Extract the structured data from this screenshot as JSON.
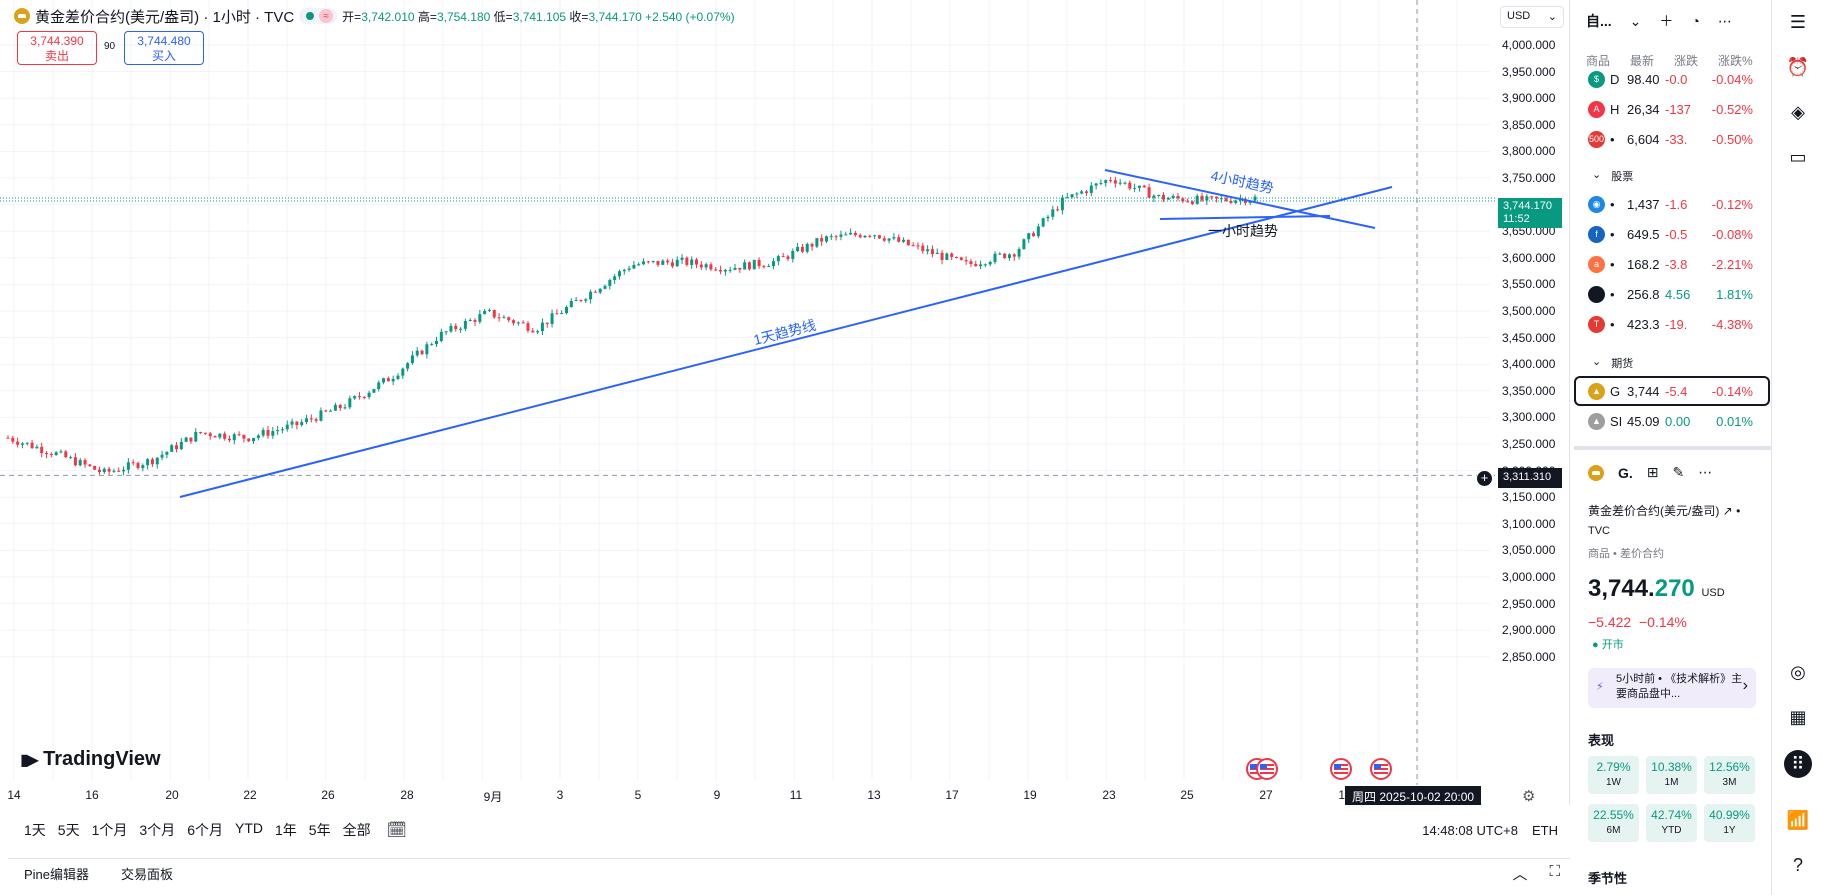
{
  "header": {
    "title": "黄金差价合约(美元/盎司) · 1小时 · TVC",
    "open_label": "开=",
    "open": "3,742.010",
    "high_label": "高=",
    "high": "3,754.180",
    "low_label": "低=",
    "low": "3,741.105",
    "close_label": "收=",
    "close": "3,744.170",
    "change": "+2.540 (+0.07%)",
    "sell_price": "3,744.390",
    "sell_label": "卖出",
    "spread": "90",
    "buy_price": "3,744.480",
    "buy_label": "买入",
    "currency": "USD"
  },
  "chart": {
    "y_ticks": [
      "4,000.000",
      "3,950.000",
      "3,900.000",
      "3,850.000",
      "3,800.000",
      "3,750.000",
      "3,700.000",
      "3,650.000",
      "3,600.000",
      "3,550.000",
      "3,500.000",
      "3,450.000",
      "3,400.000",
      "3,350.000",
      "3,300.000",
      "3,250.000",
      "3,200.000",
      "3,150.000",
      "3,100.000",
      "3,050.000",
      "3,000.000",
      "2,950.000",
      "2,900.000",
      "2,850.000"
    ],
    "x_ticks": [
      "14",
      "16",
      "20",
      "22",
      "26",
      "28",
      "9月",
      "3",
      "5",
      "9",
      "11",
      "13",
      "17",
      "19",
      "23",
      "25",
      "27",
      "10"
    ],
    "last_price": "3,744.170",
    "countdown": "11:52",
    "crosshair_price": "3,311.310",
    "crosshair_date": "周四 2025-10-02   20:00",
    "annotations": {
      "trend_1d": "1天趋势线",
      "trend_4h": "4小时趋势",
      "trend_1h": "一小时趋势"
    },
    "logo": "TradingView"
  },
  "chart_data": {
    "type": "candlestick",
    "ylim": [
      2825,
      4025
    ],
    "series": [
      {
        "label": "Aug 14",
        "price": 3370
      },
      {
        "label": "Aug 16",
        "price": 3345
      },
      {
        "label": "Aug 20",
        "price": 3315
      },
      {
        "label": "Aug 22",
        "price": 3335
      },
      {
        "label": "Aug 23",
        "price": 3378
      },
      {
        "label": "Aug 26",
        "price": 3370
      },
      {
        "label": "Aug 28",
        "price": 3390
      },
      {
        "label": "Sep 1",
        "price": 3420
      },
      {
        "label": "Sep 2",
        "price": 3465
      },
      {
        "label": "Sep 3",
        "price": 3530
      },
      {
        "label": "Sep 4",
        "price": 3565
      },
      {
        "label": "Sep 5",
        "price": 3540
      },
      {
        "label": "Sep 8",
        "price": 3590
      },
      {
        "label": "Sep 9",
        "price": 3640
      },
      {
        "label": "Sep 10",
        "price": 3645
      },
      {
        "label": "Sep 11",
        "price": 3635
      },
      {
        "label": "Sep 12",
        "price": 3645
      },
      {
        "label": "Sep 15",
        "price": 3680
      },
      {
        "label": "Sep 16",
        "price": 3690
      },
      {
        "label": "Sep 17",
        "price": 3665
      },
      {
        "label": "Sep 18",
        "price": 3640
      },
      {
        "label": "Sep 19",
        "price": 3660
      },
      {
        "label": "Sep 22",
        "price": 3740
      },
      {
        "label": "Sep 23",
        "price": 3775
      },
      {
        "label": "Sep 24",
        "price": 3745
      },
      {
        "label": "Sep 25",
        "price": 3740
      },
      {
        "label": "Sep 26",
        "price": 3744
      }
    ]
  },
  "bottom": {
    "ranges": [
      "1天",
      "5天",
      "1个月",
      "3个月",
      "6个月",
      "YTD",
      "1年",
      "5年",
      "全部"
    ],
    "time": "14:48:08 UTC+8",
    "session": "ETH",
    "panel_tabs": [
      "Pine编辑器",
      "交易面板"
    ]
  },
  "watchlist": {
    "title": "自...",
    "columns": [
      "商品",
      "最新",
      "涨跌",
      "涨跌%"
    ],
    "rows_top": [
      {
        "icon": "$",
        "color": "#089981",
        "sym": "D",
        "last": "98.40",
        "chg": "-0.0",
        "pct": "-0.04%"
      },
      {
        "icon": "A",
        "color": "#f23645",
        "sym": "H",
        "last": "26,34",
        "chg": "-137",
        "pct": "-0.52%"
      },
      {
        "icon": "500",
        "color": "#e53935",
        "sym": "•",
        "last": "6,604",
        "chg": "-33.",
        "pct": "-0.50%"
      }
    ],
    "section_stocks": "股票",
    "rows_stocks": [
      {
        "icon": "◉",
        "color": "#1e88e5",
        "sym": "•",
        "last": "1,437",
        "chg": "-1.6",
        "pct": "-0.12%",
        "chg_sign": "neg"
      },
      {
        "icon": "f",
        "color": "#1565c0",
        "sym": "•",
        "last": "649.5",
        "chg": "-0.5",
        "pct": "-0.08%",
        "chg_sign": "neg"
      },
      {
        "icon": "a",
        "color": "#ff7043",
        "sym": "•",
        "last": "168.2",
        "chg": "-3.8",
        "pct": "-2.21%",
        "chg_sign": "neg"
      },
      {
        "icon": "",
        "color": "#131722",
        "sym": "•",
        "last": "256.8",
        "chg": "4.56",
        "pct": "1.81%",
        "chg_sign": "pos"
      },
      {
        "icon": "T",
        "color": "#e53935",
        "sym": "•",
        "last": "423.3",
        "chg": "-19.",
        "pct": "-4.38%",
        "chg_sign": "neg"
      }
    ],
    "section_futures": "期货",
    "rows_futures": [
      {
        "icon": "▲",
        "color": "#d9a21b",
        "sym": "G",
        "last": "3,744",
        "chg": "-5.4",
        "pct": "-0.14%",
        "chg_sign": "neg"
      },
      {
        "icon": "▲",
        "color": "#9e9e9e",
        "sym": "SI",
        "last": "45.09",
        "chg": "0.00",
        "pct": "0.01%",
        "chg_sign": "pos"
      }
    ]
  },
  "details": {
    "symbol": "G.",
    "name": "黄金差价合约(美元/盎司)",
    "exchange": "TVC",
    "category": "商品 • 差价合约",
    "price_main": "3,744.",
    "price_frac": "270",
    "currency": "USD",
    "change": "−5.422",
    "change_pct": "−0.14%",
    "market_status": "开市",
    "news": "5小时前 • 《技术解析》主要商品盘中...",
    "perf_title": "表现",
    "perf": [
      {
        "v": "2.79%",
        "p": "1W"
      },
      {
        "v": "10.38%",
        "p": "1M"
      },
      {
        "v": "12.56%",
        "p": "3M"
      },
      {
        "v": "22.55%",
        "p": "6M"
      },
      {
        "v": "42.74%",
        "p": "YTD"
      },
      {
        "v": "40.99%",
        "p": "1Y"
      }
    ],
    "seasonality": "季节性"
  }
}
